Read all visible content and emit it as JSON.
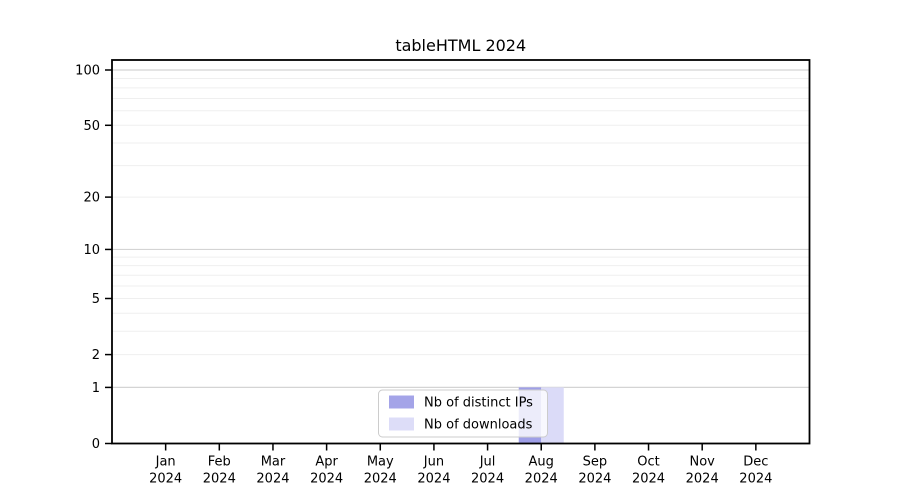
{
  "window": {
    "background": "#ffffff"
  },
  "chart_data": {
    "type": "bar",
    "title": "tableHTML 2024",
    "categories": [
      "Jan",
      "Feb",
      "Mar",
      "Apr",
      "May",
      "Jun",
      "Jul",
      "Aug",
      "Sep",
      "Oct",
      "Nov",
      "Dec"
    ],
    "category_year": "2024",
    "series": [
      {
        "name": "Nb of distinct IPs",
        "color": "#9f9fe7",
        "values": [
          0,
          0,
          0,
          0,
          0,
          0,
          0,
          1,
          0,
          0,
          0,
          0
        ]
      },
      {
        "name": "Nb of downloads",
        "color": "#dbdbf8",
        "values": [
          0,
          0,
          0,
          0,
          0,
          0,
          0,
          1,
          0,
          0,
          0,
          0
        ]
      }
    ],
    "xlabel": "",
    "ylabel": "",
    "y_scale": "log1p",
    "y_ticks": [
      0,
      1,
      2,
      5,
      10,
      20,
      50,
      100
    ],
    "y_major_gridlines": [
      1,
      10,
      100
    ],
    "y_minor_gridlines": [
      2,
      3,
      4,
      5,
      6,
      7,
      8,
      9,
      20,
      30,
      40,
      50,
      60,
      70,
      80,
      90
    ],
    "ylim": [
      0,
      113
    ],
    "grid": true,
    "legend": {
      "position": "bottom-center",
      "entries": [
        "Nb of distinct IPs",
        "Nb of downloads"
      ]
    },
    "colors": {
      "axis": "#000000",
      "text": "#000000",
      "grid_major": "#d4d4d4",
      "grid_minor": "#efefef",
      "legend_border": "#cccccc",
      "legend_background": "#ffffff"
    }
  }
}
